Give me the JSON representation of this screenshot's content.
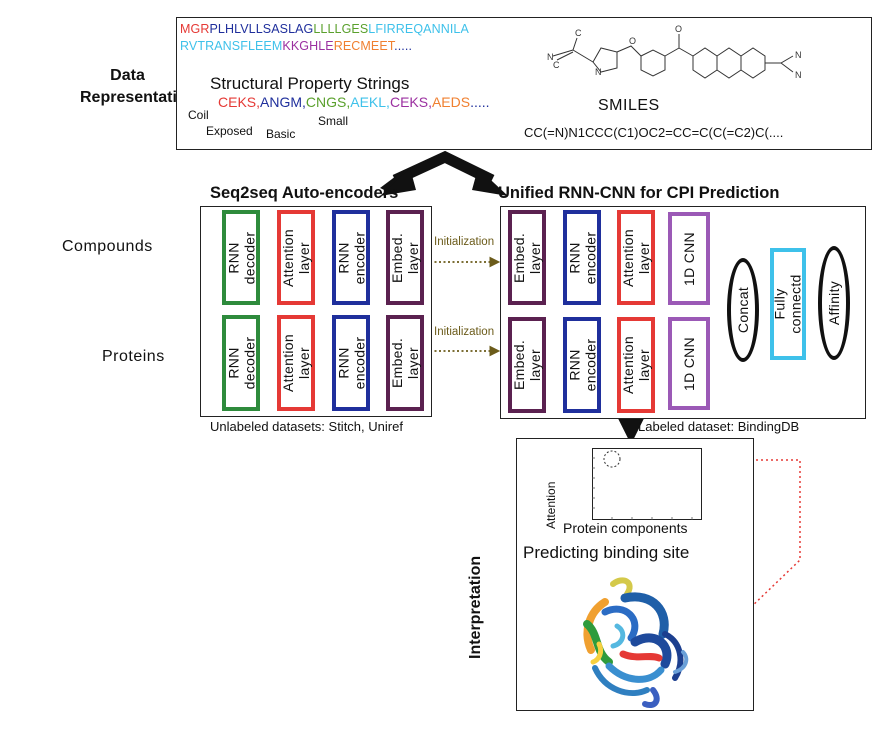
{
  "colors": {
    "green": "#2e8b3c",
    "red": "#e53935",
    "blue": "#1f2f9c",
    "purple": "#5b2150",
    "magenta": "#9b59b6",
    "cyan": "#3ec1ea",
    "olive": "#6b5b1a",
    "dotted_red": "#e53935"
  },
  "data_representation": {
    "label": "Data\nRepresentation",
    "seq_line1": [
      {
        "t": "MGR",
        "c": "#e53935"
      },
      {
        "t": "PLHLVLLSASLAG",
        "c": "#1f2f9c"
      },
      {
        "t": "LLLLGES",
        "c": "#5aa02c"
      },
      {
        "t": "LFIRREQANNILA",
        "c": "#3ec1ea"
      }
    ],
    "seq_line2": [
      {
        "t": "RVTRANSFLEEM",
        "c": "#3ec1ea"
      },
      {
        "t": "KKGHLE",
        "c": "#9b30a0"
      },
      {
        "t": "RECMEET",
        "c": "#f08030"
      },
      {
        "t": ".....",
        "c": "#1f2f9c"
      }
    ],
    "structural_title": "Structural Property Strings",
    "structural_codes": [
      {
        "t": "CEKS,",
        "c": "#e53935"
      },
      {
        "t": "ANGM,",
        "c": "#1f2f9c"
      },
      {
        "t": "CNGS,",
        "c": "#5aa02c"
      },
      {
        "t": "AEKL,",
        "c": "#3ec1ea"
      },
      {
        "t": "CEKS,",
        "c": "#9b30a0"
      },
      {
        "t": "AEDS",
        "c": "#f08030"
      },
      {
        "t": ".....",
        "c": "#1f2f9c"
      }
    ],
    "tags": {
      "coil": "Coil",
      "exposed": "Exposed",
      "basic": "Basic",
      "small": "Small"
    },
    "smiles_label": "SMILES",
    "smiles_string": "CC(=N)N1CCC(C1)OC2=CC=C(C(=C2)C(....",
    "mol_atoms": {
      "c": "C",
      "n": "N",
      "o": "O"
    }
  },
  "seq2seq": {
    "title": "Seq2seq Auto-encoders",
    "row_compounds": "Compounds",
    "row_proteins": "Proteins",
    "boxes": [
      "RNN\ndecoder",
      "Attention\nlayer",
      "RNN\nencoder",
      "Embed.\nlayer"
    ],
    "footer": "Unlabeled datasets: Stitch, Uniref"
  },
  "init_label": "Initialization",
  "cpi": {
    "title": "Unified RNN-CNN for CPI Prediction",
    "boxes": [
      "Embed.\nlayer",
      "RNN\nencoder",
      "Attention\nlayer",
      "1D  CNN"
    ],
    "concat": "Concat",
    "fully": "Fully\nconnectd",
    "affinity": "Affinity",
    "footer": "Labeled dataset: BindingDB"
  },
  "interpretation": {
    "side_label": "Interpretation",
    "ylabel": "Attention",
    "xlabel": "Protein components",
    "title": "Predicting binding site"
  }
}
